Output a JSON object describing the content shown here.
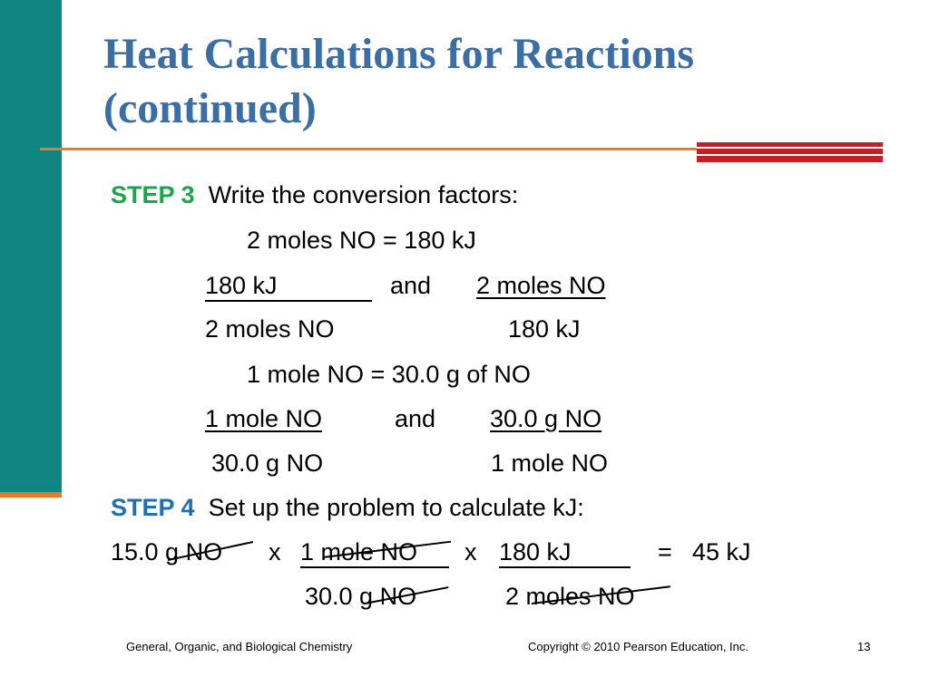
{
  "slide": {
    "title_line1": "Heat Calculations for Reactions",
    "title_line2": "(continued)",
    "colors": {
      "teal": "#0f8682",
      "orange": "#e87a2a",
      "red": "#c21f26",
      "title_blue": "#3a6ea5",
      "step3_green": "#1aa64a",
      "step4_blue": "#1e6fb5"
    }
  },
  "step3": {
    "label": "STEP 3",
    "text": "Write the conversion factors:",
    "eq1": "2 moles NO = 180 kJ",
    "cf1_num_a": "180 kJ",
    "cf1_and": "and",
    "cf1_num_b": "2 moles NO",
    "cf1_den_a": "2 moles NO",
    "cf1_den_b": "180 kJ",
    "eq2": "1 mole  NO  =  30.0 g of NO",
    "cf2_num_a": "1 mole NO",
    "cf2_and": "and",
    "cf2_num_b": "30.0 g NO",
    "cf2_den_a": "30.0 g NO",
    "cf2_den_b": "1 mole NO"
  },
  "step4": {
    "label": "STEP 4",
    "text": "Set up the problem to calculate kJ:",
    "calc_start": "15.0 g NO",
    "times1": "x",
    "num1": "1 mole NO",
    "times2": "x",
    "num2": "180 kJ",
    "equals": "=",
    "result": "45 kJ",
    "den1": "30.0 g NO",
    "den2": "2 moles NO"
  },
  "footer": {
    "left": "General, Organic, and Biological Chemistry",
    "center": "Copyright © 2010 Pearson Education, Inc.",
    "page": "13"
  }
}
